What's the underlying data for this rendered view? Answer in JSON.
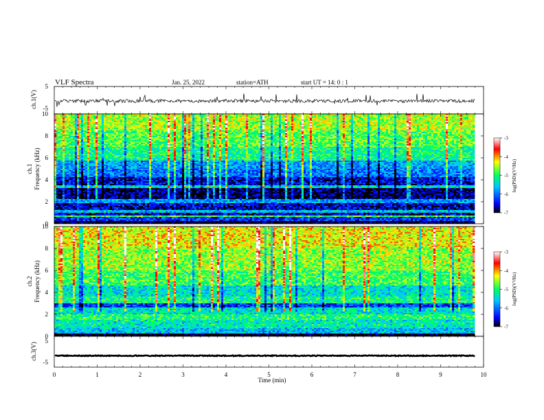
{
  "header": {
    "title": "VLF  Spectra",
    "date": "Jan. 25, 2022",
    "station": "station=ATH",
    "start_ut": "start  UT  =   14: 0   : 1"
  },
  "chart_data": [
    {
      "type": "line",
      "name": "waveform-ch1",
      "ylabel": "ch.1(V)",
      "ylim": [
        -5,
        5
      ],
      "y_ticks": [
        "5",
        "-5"
      ],
      "x_range_min": [
        0,
        9.8
      ],
      "baseline": -0.3,
      "noise_amplitude": 0.6,
      "spike_amplitude": 2.5
    },
    {
      "type": "heatmap",
      "name": "spectrogram-ch1",
      "ylabel": "ch.1\nFrequency  (kHz)",
      "ylabel_lines": [
        "ch.1",
        "Frequency  (kHz)"
      ],
      "ylim": [
        0,
        10
      ],
      "y_ticks": [
        "0",
        "2",
        "4",
        "6",
        "8",
        "10"
      ],
      "x_range_min": [
        0,
        9.8
      ],
      "colorbar": {
        "label": "log(PSD)(V²/Hz)",
        "range": [
          -7,
          -3
        ],
        "ticks": [
          "-3",
          "-4",
          "-5",
          "-6",
          "-7"
        ]
      },
      "bands_khz_log_psd": [
        {
          "from": 0,
          "to": 0.3,
          "level": -7
        },
        {
          "from": 0.3,
          "to": 0.6,
          "level": -6.3
        },
        {
          "from": 0.6,
          "to": 0.8,
          "level": -4.8
        },
        {
          "from": 0.8,
          "to": 1.0,
          "level": -6.6
        },
        {
          "from": 1.0,
          "to": 1.3,
          "level": -5.6
        },
        {
          "from": 1.3,
          "to": 1.9,
          "level": -6.6
        },
        {
          "from": 1.9,
          "to": 2.2,
          "level": -5.8
        },
        {
          "from": 2.2,
          "to": 3.2,
          "level": -6.8
        },
        {
          "from": 3.2,
          "to": 3.5,
          "level": -5.4
        },
        {
          "from": 3.5,
          "to": 4.3,
          "level": -6.5
        },
        {
          "from": 4.3,
          "to": 5.0,
          "level": -6.0
        },
        {
          "from": 5.0,
          "to": 5.7,
          "level": -5.8
        },
        {
          "from": 5.7,
          "to": 7.0,
          "level": -5.1
        },
        {
          "from": 7.0,
          "to": 8.5,
          "level": -4.8
        },
        {
          "from": 8.5,
          "to": 10.0,
          "level": -4.5
        }
      ]
    },
    {
      "type": "heatmap",
      "name": "spectrogram-ch2",
      "ylabel": "ch.2\nFrequency  (kHz)",
      "ylabel_lines": [
        "ch.2",
        "Frequency  (kHz)"
      ],
      "ylim": [
        0,
        10
      ],
      "y_ticks": [
        "0",
        "2",
        "4",
        "6",
        "8",
        "10"
      ],
      "x_range_min": [
        0,
        9.8
      ],
      "colorbar": {
        "label": "log(PSD)(V²/Hz)",
        "range": [
          -7,
          -3
        ],
        "ticks": [
          "-3",
          "-4",
          "-5",
          "-6",
          "-7"
        ]
      },
      "bands_khz_log_psd": [
        {
          "from": 0,
          "to": 0.3,
          "level": -7
        },
        {
          "from": 0.3,
          "to": 0.8,
          "level": -5.6
        },
        {
          "from": 0.8,
          "to": 1.5,
          "level": -5.3
        },
        {
          "from": 1.5,
          "to": 2.0,
          "level": -5.0
        },
        {
          "from": 2.0,
          "to": 2.6,
          "level": -5.4
        },
        {
          "from": 2.6,
          "to": 3.0,
          "level": -6.3
        },
        {
          "from": 3.0,
          "to": 3.6,
          "level": -5.1
        },
        {
          "from": 3.6,
          "to": 4.6,
          "level": -5.4
        },
        {
          "from": 4.6,
          "to": 6.0,
          "level": -4.9
        },
        {
          "from": 6.0,
          "to": 8.0,
          "level": -4.6
        },
        {
          "from": 8.0,
          "to": 10.0,
          "level": -4.3
        }
      ]
    },
    {
      "type": "line",
      "name": "waveform-ch3",
      "ylabel": "ch.3(V)",
      "ylim": [
        -5,
        5
      ],
      "y_ticks": [
        "5",
        "-5"
      ],
      "x_range_min": [
        0,
        9.8
      ],
      "baseline": -1.3,
      "noise_amplitude": 0.15,
      "spike_amplitude": 0
    }
  ],
  "x_axis": {
    "label": "Time  (min)",
    "range": [
      0,
      10
    ],
    "ticks": [
      "0",
      "1",
      "2",
      "3",
      "4",
      "5",
      "6",
      "7",
      "8",
      "9",
      "10"
    ]
  },
  "colors": {
    "colormap": [
      "#000000",
      "#0000ff",
      "#00c8ff",
      "#00ff64",
      "#ffff00",
      "#ff0000",
      "#ffffff"
    ],
    "trace": "#000000"
  }
}
